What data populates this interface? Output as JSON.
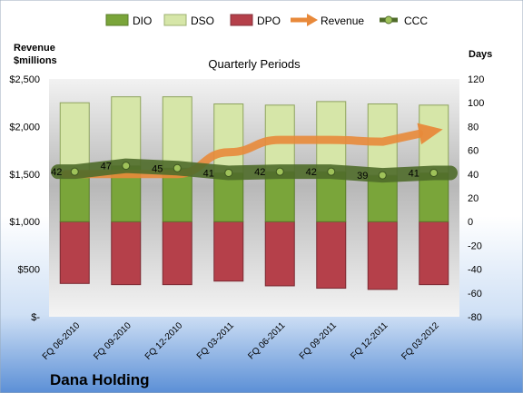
{
  "chart_data": {
    "type": "bar",
    "title": "Quarterly Periods",
    "company": "Dana Holding",
    "left_axis_label_line1": "Revenue",
    "left_axis_label_line2": "$millions",
    "right_axis_label": "Days",
    "categories": [
      "FQ 06-2010",
      "FQ 09-2010",
      "FQ 12-2010",
      "FQ 03-2011",
      "FQ 06-2011",
      "FQ 09-2011",
      "FQ 12-2011",
      "FQ 03-2012"
    ],
    "left_ticks": [
      "$-",
      "$500",
      "$1,000",
      "$1,500",
      "$2,000",
      "$2,500"
    ],
    "left_ylim": [
      0,
      2500
    ],
    "right_ylim": [
      -80,
      120
    ],
    "right_ticks": [
      -80,
      -60,
      -40,
      -20,
      0,
      20,
      40,
      60,
      80,
      100,
      120
    ],
    "series": [
      {
        "name": "DIO",
        "kind": "stacked-bar",
        "color": "#7aa53a",
        "values": [
          42,
          47,
          45,
          41,
          42,
          42,
          39,
          41
        ]
      },
      {
        "name": "DSO",
        "kind": "stacked-bar",
        "color": "#d6e6a8",
        "values": [
          58,
          58,
          60,
          58,
          56,
          59,
          60,
          57
        ]
      },
      {
        "name": "DPO",
        "kind": "stacked-bar",
        "color": "#b5404a",
        "values": [
          -52,
          -53,
          -53,
          -50,
          -54,
          -56,
          -57,
          -53
        ]
      },
      {
        "name": "Revenue",
        "kind": "trend-arrow",
        "color": "#e8893a",
        "values": [
          1500,
          1500,
          1500,
          1730,
          1860,
          1860,
          1840,
          1960
        ]
      },
      {
        "name": "CCC",
        "kind": "line",
        "color": "#4f6b2a",
        "values": [
          42,
          47,
          45,
          41,
          42,
          42,
          39,
          41
        ]
      }
    ],
    "ccc_labels": [
      "42",
      "47",
      "45",
      "41",
      "42",
      "42",
      "39",
      "41"
    ],
    "legend_position": "top",
    "grid": false
  }
}
